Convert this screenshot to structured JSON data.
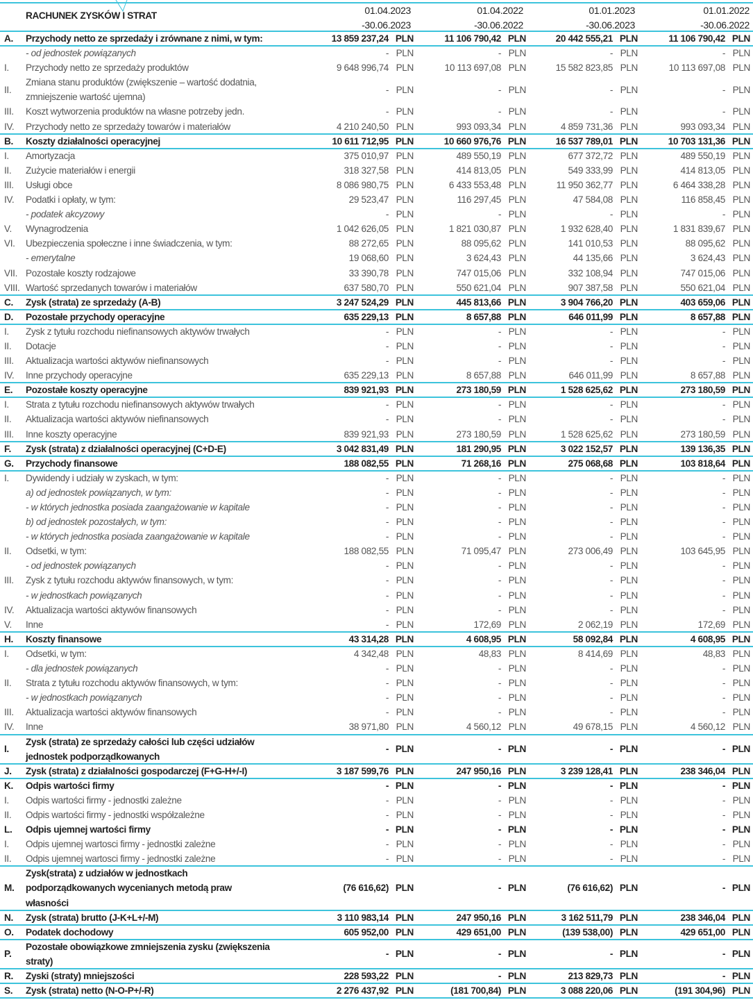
{
  "header": {
    "title": "RACHUNEK ZYSKÓW I STRAT",
    "columns": [
      [
        "01.04.2023",
        "-30.06.2023"
      ],
      [
        "01.04.2022",
        "-30.06.2022"
      ],
      [
        "01.01.2023",
        "-30.06.2023"
      ],
      [
        "01.01.2022",
        "-30.06.2022"
      ]
    ]
  },
  "currency": "PLN",
  "accent_color": "#3cc3dc",
  "rows": [
    {
      "m": "A.",
      "t": "Przychody netto ze sprzedaży i zrównane z nimi, w tym:",
      "k": "s",
      "v": [
        "13 859 237,24",
        "11 106 790,42",
        "20 442 555,21",
        "11 106 790,42"
      ]
    },
    {
      "m": "",
      "t": "- od jednostek powiązanych",
      "k": "i",
      "v": [
        "-",
        "-",
        "-",
        "-"
      ]
    },
    {
      "m": "I.",
      "t": "Przychody netto ze sprzedaży produktów",
      "k": "n",
      "v": [
        "9 648 996,74",
        "10 113 697,08",
        "15 582 823,85",
        "10 113 697,08"
      ]
    },
    {
      "m": "II.",
      "t": "Zmiana stanu produktów (zwiększenie – wartość dodatnia,\nzmniejszenie wartość ujemna)",
      "k": "n",
      "l": 2,
      "v": [
        "-",
        "-",
        "-",
        "-"
      ]
    },
    {
      "m": "III.",
      "t": "Koszt wytworzenia produktów na własne potrzeby jedn.",
      "k": "n",
      "v": [
        "-",
        "-",
        "-",
        "-"
      ]
    },
    {
      "m": "IV.",
      "t": "Przychody netto ze sprzedaży towarów i materiałów",
      "k": "n",
      "v": [
        "4 210 240,50",
        "993 093,34",
        "4 859 731,36",
        "993 093,34"
      ]
    },
    {
      "m": "B.",
      "t": "Koszty działalności operacyjnej",
      "k": "s",
      "v": [
        "10 611 712,95",
        "10 660 976,76",
        "16 537 789,01",
        "10 703 131,36"
      ]
    },
    {
      "m": "I.",
      "t": "Amortyzacja",
      "k": "n",
      "v": [
        "375 010,97",
        "489 550,19",
        "677 372,72",
        "489 550,19"
      ]
    },
    {
      "m": "II.",
      "t": "Zużycie materiałów i energii",
      "k": "n",
      "v": [
        "318 327,58",
        "414 813,05",
        "549 333,99",
        "414 813,05"
      ]
    },
    {
      "m": "III.",
      "t": "Usługi obce",
      "k": "n",
      "v": [
        "8 086 980,75",
        "6 433 553,48",
        "11 950 362,77",
        "6 464 338,28"
      ]
    },
    {
      "m": "IV.",
      "t": "Podatki i opłaty, w tym:",
      "k": "n",
      "v": [
        "29 523,47",
        "116 297,45",
        "47 584,08",
        "116 858,45"
      ]
    },
    {
      "m": "",
      "t": "- podatek akcyzowy",
      "k": "i",
      "v": [
        "-",
        "-",
        "-",
        "-"
      ]
    },
    {
      "m": "V.",
      "t": "Wynagrodzenia",
      "k": "n",
      "v": [
        "1 042 626,05",
        "1 821 030,87",
        "1 932 628,40",
        "1 831 839,67"
      ]
    },
    {
      "m": "VI.",
      "t": "Ubezpieczenia społeczne i inne świadczenia, w tym:",
      "k": "n",
      "v": [
        "88 272,65",
        "88 095,62",
        "141 010,53",
        "88 095,62"
      ]
    },
    {
      "m": "",
      "t": "- emerytalne",
      "k": "i",
      "v": [
        "19 068,60",
        "3 624,43",
        "44 135,66",
        "3 624,43"
      ]
    },
    {
      "m": "VII.",
      "t": "Pozostałe koszty rodzajowe",
      "k": "n",
      "v": [
        "33 390,78",
        "747 015,06",
        "332 108,94",
        "747 015,06"
      ]
    },
    {
      "m": "VIII.",
      "t": "Wartość sprzedanych towarów i materiałów",
      "k": "n",
      "v": [
        "637 580,70",
        "550 621,04",
        "907 387,58",
        "550 621,04"
      ]
    },
    {
      "m": "C.",
      "t": "Zysk (strata) ze sprzedaży (A-B)",
      "k": "s",
      "v": [
        "3 247 524,29",
        "445 813,66",
        "3 904 766,20",
        "403 659,06"
      ]
    },
    {
      "m": "D.",
      "t": "Pozostałe przychody operacyjne",
      "k": "s",
      "v": [
        "635 229,13",
        "8 657,88",
        "646 011,99",
        "8 657,88"
      ]
    },
    {
      "m": "I.",
      "t": "Zysk z tytułu rozchodu niefinansowych aktywów trwałych",
      "k": "n",
      "v": [
        "-",
        "-",
        "-",
        "-"
      ]
    },
    {
      "m": "II.",
      "t": "Dotacje",
      "k": "n",
      "v": [
        "-",
        "-",
        "-",
        "-"
      ]
    },
    {
      "m": "III.",
      "t": "Aktualizacja wartości aktywów niefinansowych",
      "k": "n",
      "v": [
        "-",
        "-",
        "-",
        "-"
      ]
    },
    {
      "m": "IV.",
      "t": "Inne przychody operacyjne",
      "k": "n",
      "v": [
        "635 229,13",
        "8 657,88",
        "646 011,99",
        "8 657,88"
      ]
    },
    {
      "m": "E.",
      "t": "Pozostałe koszty operacyjne",
      "k": "s",
      "v": [
        "839 921,93",
        "273 180,59",
        "1 528 625,62",
        "273 180,59"
      ]
    },
    {
      "m": "I.",
      "t": "Strata z tytułu rozchodu niefinansowych aktywów trwałych",
      "k": "n",
      "v": [
        "-",
        "-",
        "-",
        "-"
      ]
    },
    {
      "m": "II.",
      "t": "Aktualizacja wartości aktywów niefinansowych",
      "k": "n",
      "v": [
        "-",
        "-",
        "-",
        "-"
      ]
    },
    {
      "m": "III.",
      "t": "Inne koszty operacyjne",
      "k": "n",
      "v": [
        "839 921,93",
        "273 180,59",
        "1 528 625,62",
        "273 180,59"
      ]
    },
    {
      "m": "F.",
      "t": "Zysk (strata) z działalności operacyjnej (C+D-E)",
      "k": "s",
      "v": [
        "3 042 831,49",
        "181 290,95",
        "3 022 152,57",
        "139 136,35"
      ]
    },
    {
      "m": "G.",
      "t": "Przychody finansowe",
      "k": "s",
      "v": [
        "188 082,55",
        "71 268,16",
        "275 068,68",
        "103 818,64"
      ]
    },
    {
      "m": "I.",
      "t": "Dywidendy i udziały w zyskach, w tym:",
      "k": "n",
      "v": [
        "-",
        "-",
        "-",
        "-"
      ]
    },
    {
      "m": "",
      "t": "a) od jednostek powiązanych, w tym:",
      "k": "i",
      "v": [
        "-",
        "-",
        "-",
        "-"
      ]
    },
    {
      "m": "",
      "t": "- w których jednostka posiada zaangażowanie w kapitale",
      "k": "i",
      "v": [
        "-",
        "-",
        "-",
        "-"
      ]
    },
    {
      "m": "",
      "t": "b) od jednostek pozostałych, w tym:",
      "k": "i",
      "v": [
        "-",
        "-",
        "-",
        "-"
      ]
    },
    {
      "m": "",
      "t": "- w których jednostka posiada zaangażowanie w kapitale",
      "k": "i",
      "v": [
        "-",
        "-",
        "-",
        "-"
      ]
    },
    {
      "m": "II.",
      "t": "Odsetki, w tym:",
      "k": "n",
      "v": [
        "188 082,55",
        "71 095,47",
        "273 006,49",
        "103 645,95"
      ]
    },
    {
      "m": "",
      "t": "- od jednostek powiązanych",
      "k": "i",
      "v": [
        "-",
        "-",
        "-",
        "-"
      ]
    },
    {
      "m": "III.",
      "t": "Zysk z tytułu rozchodu aktywów finansowych, w tym:",
      "k": "n",
      "v": [
        "-",
        "-",
        "-",
        "-"
      ]
    },
    {
      "m": "",
      "t": "- w jednostkach powiązanych",
      "k": "i",
      "v": [
        "-",
        "-",
        "-",
        "-"
      ]
    },
    {
      "m": "IV.",
      "t": "Aktualizacja wartości aktywów finansowych",
      "k": "n",
      "v": [
        "-",
        "-",
        "-",
        "-"
      ]
    },
    {
      "m": "V.",
      "t": "Inne",
      "k": "n",
      "v": [
        "-",
        "172,69",
        "2 062,19",
        "172,69"
      ]
    },
    {
      "m": "H.",
      "t": "Koszty finansowe",
      "k": "s",
      "v": [
        "43 314,28",
        "4 608,95",
        "58 092,84",
        "4 608,95"
      ]
    },
    {
      "m": "I.",
      "t": "Odsetki, w tym:",
      "k": "n",
      "v": [
        "4 342,48",
        "48,83",
        "8 414,69",
        "48,83"
      ]
    },
    {
      "m": "",
      "t": "- dla jednostek powiązanych",
      "k": "i",
      "v": [
        "-",
        "-",
        "-",
        "-"
      ]
    },
    {
      "m": "II.",
      "t": "Strata z tytułu rozchodu aktywów finansowych, w tym:",
      "k": "n",
      "v": [
        "-",
        "-",
        "-",
        "-"
      ]
    },
    {
      "m": "",
      "t": "- w jednostkach powiązanych",
      "k": "i",
      "v": [
        "-",
        "-",
        "-",
        "-"
      ]
    },
    {
      "m": "III.",
      "t": "Aktualizacja wartości aktywów finansowych",
      "k": "n",
      "v": [
        "-",
        "-",
        "-",
        "-"
      ]
    },
    {
      "m": "IV.",
      "t": "Inne",
      "k": "n",
      "v": [
        "38 971,80",
        "4 560,12",
        "49 678,15",
        "4 560,12"
      ]
    },
    {
      "m": "I.",
      "t": "Zysk (strata) ze sprzedaży całości lub części udziałów\njednostek podporządkowanych",
      "k": "s",
      "l": 2,
      "v": [
        "-",
        "-",
        "-",
        "-"
      ]
    },
    {
      "m": "J.",
      "t": "Zysk (strata) z działalności gospodarczej (F+G-H+/-I)",
      "k": "s",
      "v": [
        "3 187 599,76",
        "247 950,16",
        "3 239 128,41",
        "238 346,04"
      ]
    },
    {
      "m": "K.",
      "t": "Odpis wartości firmy",
      "k": "s",
      "nb": true,
      "v": [
        "-",
        "-",
        "-",
        "-"
      ]
    },
    {
      "m": "I.",
      "t": "Odpis wartości firmy - jednostki zależne",
      "k": "n",
      "v": [
        "-",
        "-",
        "-",
        "-"
      ]
    },
    {
      "m": "II.",
      "t": "Odpis wartości firmy - jednostki współzależne",
      "k": "n",
      "v": [
        "-",
        "-",
        "-",
        "-"
      ]
    },
    {
      "m": "L.",
      "t": "Odpis ujemnej wartości firmy",
      "k": "s",
      "nb": true,
      "v": [
        "-",
        "-",
        "-",
        "-"
      ]
    },
    {
      "m": "I.",
      "t": "Odpis ujemnej wartosci firmy - jednostki zależne",
      "k": "n",
      "v": [
        "-",
        "-",
        "-",
        "-"
      ]
    },
    {
      "m": "II.",
      "t": "Odpis ujemnej wartosci firmy - jednostki zależne",
      "k": "n",
      "v": [
        "-",
        "-",
        "-",
        "-"
      ]
    },
    {
      "m": "M.",
      "t": "Zysk(strata) z udziałów w jednostkach\npodporządkowanych wycenianych metodą praw\nwłasności",
      "k": "s",
      "l": 3,
      "v": [
        "(76 616,62)",
        "-",
        "(76 616,62)",
        "-"
      ]
    },
    {
      "m": "N.",
      "t": "Zysk (strata) brutto (J-K+L+/-M)",
      "k": "s",
      "v": [
        "3 110 983,14",
        "247 950,16",
        "3 162 511,79",
        "238 346,04"
      ]
    },
    {
      "m": "O.",
      "t": "Podatek dochodowy",
      "k": "s",
      "v": [
        "605 952,00",
        "429 651,00",
        "(139 538,00)",
        "429 651,00"
      ]
    },
    {
      "m": "P.",
      "t": "Pozostałe obowiązkowe zmniejszenia zysku (zwiększenia\nstraty)",
      "k": "s",
      "l": 2,
      "v": [
        "-",
        "-",
        "-",
        "-"
      ]
    },
    {
      "m": "R.",
      "t": "Zyski (straty) mniejszości",
      "k": "s",
      "v": [
        "228 593,22",
        "-",
        "213 829,73",
        "-"
      ]
    },
    {
      "m": "S.",
      "t": "Zysk (strata) netto (N-O-P+/-R)",
      "k": "s",
      "v": [
        "2 276 437,92",
        "(181 700,84)",
        "3 088 220,06",
        "(191 304,96)"
      ]
    }
  ]
}
